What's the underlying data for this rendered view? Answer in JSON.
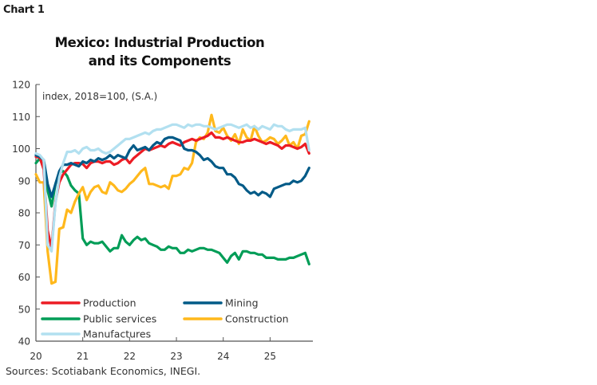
{
  "chart_label": "Chart 1",
  "title_line1": "Mexico: Industrial Production",
  "title_line2": "and its Components",
  "source": "Sources: Scotiabank Economics, INEGI.",
  "chart_data": {
    "type": "line",
    "title": "Mexico: Industrial Production and its Components",
    "unit_label": "index, 2018=100, (S.A.)",
    "xlabel": "",
    "ylabel": "index, 2018=100, (S.A.)",
    "ylim": [
      40,
      120
    ],
    "yticks": [
      40,
      50,
      60,
      70,
      80,
      90,
      100,
      110,
      120
    ],
    "xticks": [
      "20",
      "21",
      "22",
      "23",
      "24",
      "25"
    ],
    "x_start": "2020-01",
    "frequency": "monthly",
    "grid": false,
    "legend_position": "lower-left inside plot",
    "series": [
      {
        "name": "Production",
        "color": "#EC1C24",
        "values": [
          97.5,
          97.2,
          93.5,
          74.5,
          69.0,
          83.5,
          89.5,
          92.0,
          93.5,
          95.0,
          95.5,
          95.5,
          95.2,
          94.0,
          95.5,
          96.0,
          96.0,
          95.5,
          96.0,
          96.0,
          95.0,
          95.5,
          96.5,
          97.0,
          95.5,
          97.0,
          98.0,
          99.0,
          100.0,
          99.5,
          100.0,
          100.5,
          101.0,
          100.5,
          101.5,
          102.0,
          101.5,
          101.0,
          102.0,
          102.5,
          103.0,
          102.5,
          103.0,
          103.5,
          104.0,
          105.0,
          103.5,
          103.5,
          103.0,
          103.5,
          103.0,
          102.5,
          102.0,
          102.0,
          102.5,
          102.5,
          103.0,
          102.5,
          102.0,
          101.5,
          102.0,
          101.5,
          101.0,
          100.0,
          101.0,
          101.0,
          100.5,
          100.0,
          100.5,
          101.5,
          98.5
        ]
      },
      {
        "name": "Mining",
        "color": "#005A87",
        "values": [
          98.0,
          97.5,
          96.5,
          89.0,
          85.0,
          89.0,
          93.0,
          95.0,
          95.0,
          95.5,
          95.0,
          94.5,
          96.0,
          95.5,
          96.5,
          96.0,
          97.0,
          96.5,
          97.0,
          98.0,
          97.0,
          98.0,
          97.5,
          97.0,
          99.5,
          101.0,
          99.5,
          100.0,
          100.5,
          99.5,
          101.0,
          102.0,
          101.5,
          103.0,
          103.5,
          103.5,
          103.0,
          102.5,
          100.0,
          99.5,
          99.5,
          99.0,
          98.0,
          96.5,
          97.0,
          96.0,
          94.5,
          94.0,
          94.0,
          92.0,
          92.0,
          91.0,
          89.0,
          88.5,
          87.0,
          86.0,
          86.5,
          85.5,
          86.5,
          86.0,
          85.0,
          87.5,
          88.0,
          88.5,
          89.0,
          89.0,
          90.0,
          89.5,
          90.0,
          91.5,
          94.0
        ]
      },
      {
        "name": "Public services",
        "color": "#009D57",
        "values": [
          95.5,
          97.0,
          94.0,
          87.0,
          82.0,
          89.0,
          92.5,
          93.0,
          91.5,
          88.5,
          87.0,
          86.0,
          72.0,
          70.0,
          71.0,
          70.5,
          70.5,
          71.0,
          69.5,
          68.0,
          69.0,
          69.0,
          73.0,
          71.0,
          70.0,
          71.5,
          72.5,
          71.5,
          72.0,
          70.5,
          70.0,
          69.5,
          68.5,
          68.5,
          69.5,
          69.0,
          69.0,
          67.5,
          67.5,
          68.5,
          68.0,
          68.5,
          69.0,
          69.0,
          68.5,
          68.5,
          68.0,
          67.5,
          66.0,
          64.5,
          66.5,
          67.5,
          65.5,
          68.0,
          68.0,
          67.5,
          67.5,
          67.0,
          67.0,
          66.0,
          66.0,
          66.0,
          65.5,
          65.5,
          65.5,
          66.0,
          66.0,
          66.5,
          67.0,
          67.5,
          64.0
        ]
      },
      {
        "name": "Construction",
        "color": "#FFB81C",
        "values": [
          92.0,
          89.5,
          89.5,
          68.0,
          58.0,
          58.5,
          75.0,
          75.5,
          81.0,
          80.0,
          83.5,
          86.0,
          88.0,
          84.0,
          86.5,
          88.0,
          88.5,
          86.5,
          86.0,
          89.5,
          88.5,
          87.0,
          86.5,
          87.5,
          89.0,
          90.0,
          91.5,
          93.0,
          94.0,
          89.0,
          89.0,
          88.5,
          88.0,
          88.5,
          87.5,
          91.5,
          91.5,
          92.0,
          94.0,
          93.5,
          95.5,
          102.0,
          103.5,
          103.0,
          105.0,
          110.5,
          105.5,
          105.0,
          106.5,
          104.0,
          102.5,
          104.5,
          101.5,
          106.0,
          103.5,
          102.5,
          107.0,
          104.0,
          102.0,
          102.5,
          103.5,
          103.0,
          101.5,
          102.5,
          104.0,
          101.0,
          102.0,
          100.0,
          104.0,
          104.5,
          108.5
        ]
      },
      {
        "name": "Manufactures",
        "color": "#B2E0F0",
        "values": [
          98.5,
          98.0,
          96.5,
          70.0,
          68.0,
          83.0,
          91.0,
          95.5,
          99.0,
          99.0,
          99.5,
          98.5,
          100.0,
          100.5,
          99.5,
          99.5,
          100.0,
          99.0,
          98.5,
          99.0,
          100.0,
          101.0,
          102.0,
          103.0,
          103.0,
          103.5,
          104.0,
          104.5,
          105.0,
          104.5,
          105.5,
          106.0,
          106.0,
          106.5,
          107.0,
          107.5,
          107.5,
          107.0,
          106.5,
          107.5,
          107.0,
          107.5,
          107.5,
          107.0,
          107.0,
          106.5,
          106.0,
          106.5,
          107.0,
          107.5,
          107.5,
          107.0,
          106.5,
          107.0,
          107.5,
          106.5,
          107.0,
          106.0,
          107.0,
          106.5,
          106.0,
          107.5,
          107.0,
          107.0,
          106.0,
          105.5,
          106.0,
          106.0,
          106.0,
          106.5,
          99.5
        ]
      }
    ]
  }
}
